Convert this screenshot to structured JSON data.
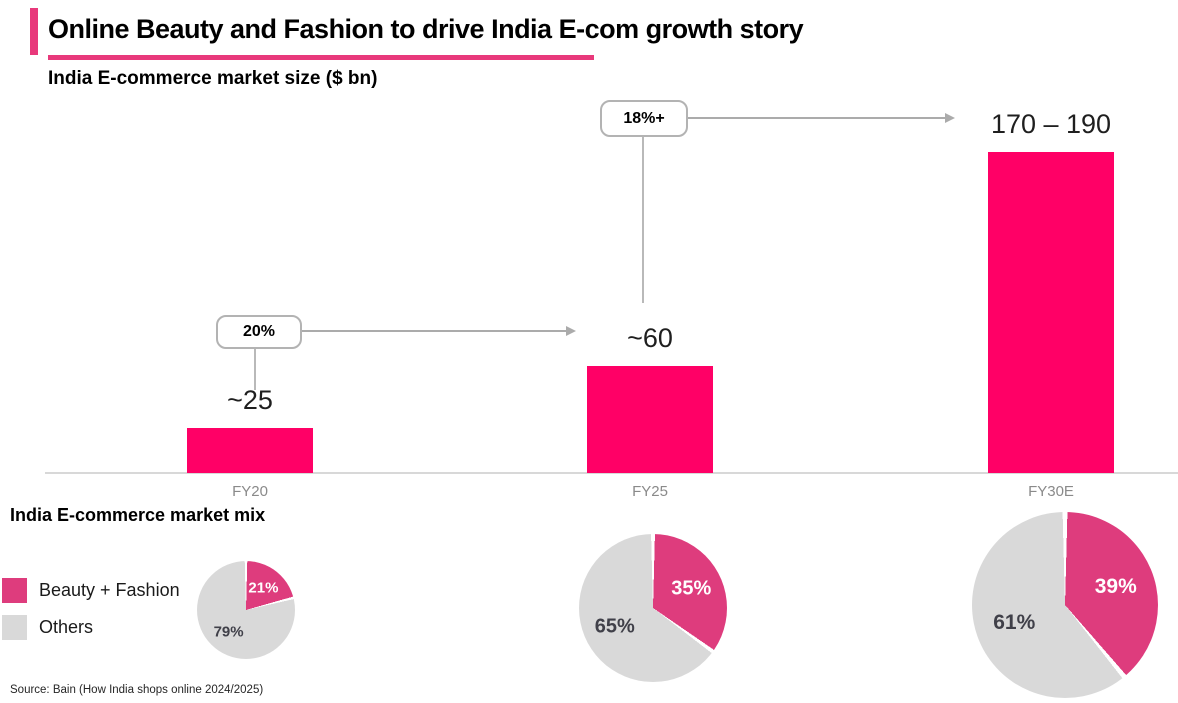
{
  "header": {
    "title": "Online Beauty and Fashion to drive India E-com growth story"
  },
  "colors": {
    "bar_pink": "#FF0066",
    "pie_pink": "#DE3C7D",
    "accent_pink": "#E8397B",
    "others_gray": "#D9D9D9"
  },
  "chart_data": [
    {
      "type": "bar",
      "title": "India E-commerce market size ($ bn)",
      "categories": [
        "FY20",
        "FY25",
        "FY30E"
      ],
      "values": [
        25,
        60,
        180
      ],
      "value_labels": [
        "~25",
        "~60",
        "170 – 190"
      ],
      "ylim": [
        0,
        190
      ],
      "grid": false,
      "annotations": [
        {
          "label": "20%",
          "from": "FY20",
          "to": "FY25"
        },
        {
          "label": "18%+",
          "from": "FY25",
          "to": "FY30E"
        }
      ]
    },
    {
      "type": "pie",
      "category": "FY20",
      "labels": [
        "Beauty + Fashion",
        "Others"
      ],
      "values": [
        21,
        79
      ],
      "value_labels": [
        "21%",
        "79%"
      ]
    },
    {
      "type": "pie",
      "category": "FY25",
      "labels": [
        "Beauty + Fashion",
        "Others"
      ],
      "values": [
        35,
        65
      ],
      "value_labels": [
        "35%",
        "65%"
      ]
    },
    {
      "type": "pie",
      "category": "FY30E",
      "labels": [
        "Beauty + Fashion",
        "Others"
      ],
      "values": [
        39,
        61
      ],
      "value_labels": [
        "39%",
        "61%"
      ]
    }
  ],
  "mix_section": {
    "heading": "India E-commerce market mix",
    "legend": [
      {
        "label": "Beauty + Fashion"
      },
      {
        "label": "Others"
      }
    ]
  },
  "footer": {
    "source": "Source: Bain (How India shops online 2024/2025)"
  }
}
